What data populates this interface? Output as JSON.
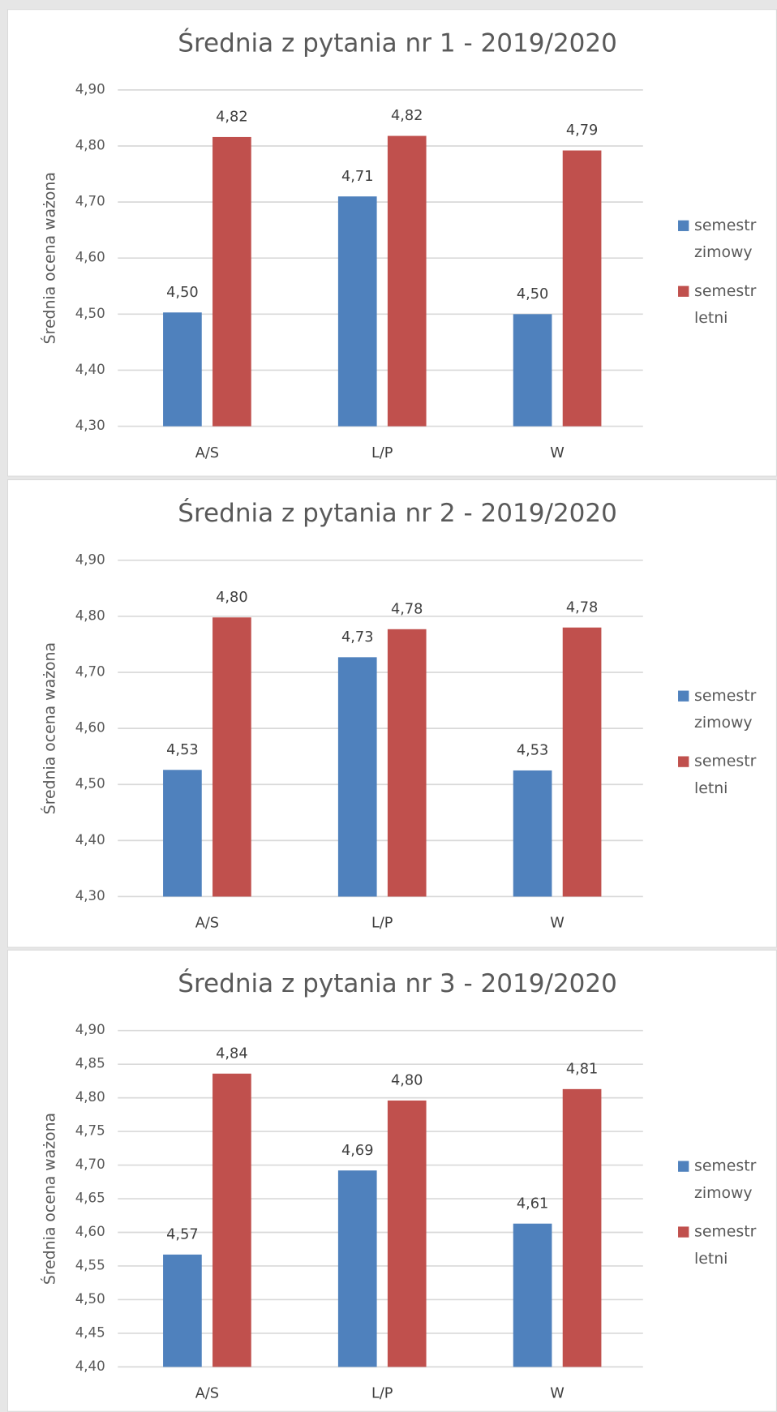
{
  "chart_data": [
    {
      "type": "bar",
      "title": "Średnia z pytania nr 1 - 2019/2020",
      "y_label": "Średnia ocena ważona",
      "categories": [
        "A/S",
        "L/P",
        "W"
      ],
      "series": [
        {
          "name": "semestr zimowy",
          "color": "#4f81bd",
          "values": [
            4.503,
            4.71,
            4.5
          ],
          "value_labels": [
            "4,50",
            "4,71",
            "4,50"
          ]
        },
        {
          "name": "semestr letni",
          "color": "#c0504d",
          "values": [
            4.816,
            4.818,
            4.792
          ],
          "value_labels": [
            "4,82",
            "4,82",
            "4,79"
          ]
        }
      ],
      "ylim": [
        4.3,
        4.9
      ],
      "yticks": [
        {
          "value": 4.3,
          "label": "4,30"
        },
        {
          "value": 4.4,
          "label": "4,40"
        },
        {
          "value": 4.5,
          "label": "4,50"
        },
        {
          "value": 4.6,
          "label": "4,60"
        },
        {
          "value": 4.7,
          "label": "4,70"
        },
        {
          "value": 4.8,
          "label": "4,80"
        },
        {
          "value": 4.9,
          "label": "4,90"
        }
      ],
      "grid": true,
      "legend": "right"
    },
    {
      "type": "bar",
      "title": "Średnia z pytania nr 2 - 2019/2020",
      "y_label": "Średnia ocena ważona",
      "categories": [
        "A/S",
        "L/P",
        "W"
      ],
      "series": [
        {
          "name": "semestr zimowy",
          "color": "#4f81bd",
          "values": [
            4.526,
            4.727,
            4.525
          ],
          "value_labels": [
            "4,53",
            "4,73",
            "4,53"
          ]
        },
        {
          "name": "semestr letni",
          "color": "#c0504d",
          "values": [
            4.798,
            4.777,
            4.78
          ],
          "value_labels": [
            "4,80",
            "4,78",
            "4,78"
          ]
        }
      ],
      "ylim": [
        4.3,
        4.9
      ],
      "yticks": [
        {
          "value": 4.3,
          "label": "4,30"
        },
        {
          "value": 4.4,
          "label": "4,40"
        },
        {
          "value": 4.5,
          "label": "4,50"
        },
        {
          "value": 4.6,
          "label": "4,60"
        },
        {
          "value": 4.7,
          "label": "4,70"
        },
        {
          "value": 4.8,
          "label": "4,80"
        },
        {
          "value": 4.9,
          "label": "4,90"
        }
      ],
      "grid": true,
      "legend": "right"
    },
    {
      "type": "bar",
      "title": "Średnia z pytania nr 3 - 2019/2020",
      "y_label": "Średnia ocena ważona",
      "categories": [
        "A/S",
        "L/P",
        "W"
      ],
      "series": [
        {
          "name": "semestr zimowy",
          "color": "#4f81bd",
          "values": [
            4.567,
            4.692,
            4.613
          ],
          "value_labels": [
            "4,57",
            "4,69",
            "4,61"
          ]
        },
        {
          "name": "semestr letni",
          "color": "#c0504d",
          "values": [
            4.836,
            4.796,
            4.813
          ],
          "value_labels": [
            "4,84",
            "4,80",
            "4,81"
          ]
        }
      ],
      "ylim": [
        4.4,
        4.9
      ],
      "yticks": [
        {
          "value": 4.4,
          "label": "4,40"
        },
        {
          "value": 4.45,
          "label": "4,45"
        },
        {
          "value": 4.5,
          "label": "4,50"
        },
        {
          "value": 4.55,
          "label": "4,55"
        },
        {
          "value": 4.6,
          "label": "4,60"
        },
        {
          "value": 4.65,
          "label": "4,65"
        },
        {
          "value": 4.7,
          "label": "4,70"
        },
        {
          "value": 4.75,
          "label": "4,75"
        },
        {
          "value": 4.8,
          "label": "4,80"
        },
        {
          "value": 4.85,
          "label": "4,85"
        },
        {
          "value": 4.9,
          "label": "4,90"
        }
      ],
      "grid": true,
      "legend": "right"
    }
  ]
}
